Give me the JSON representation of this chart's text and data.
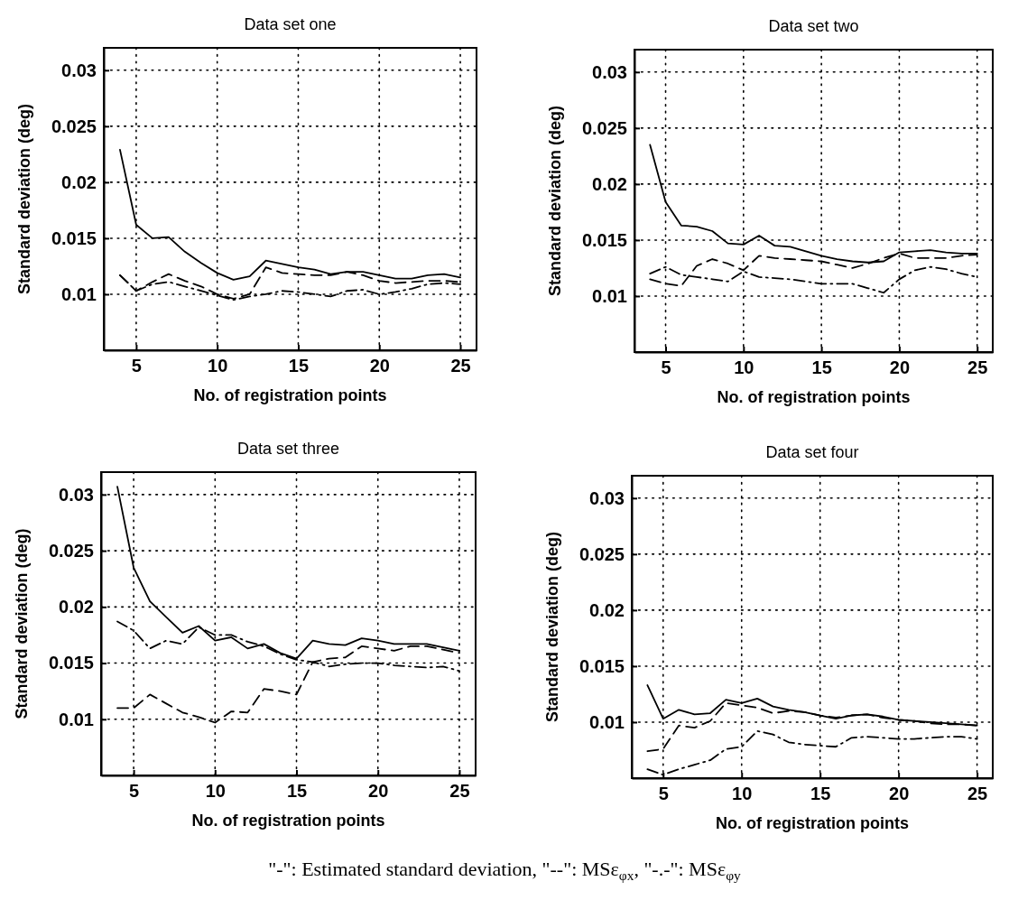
{
  "chart_data": [
    {
      "type": "line",
      "title": "Data set one",
      "xlabel": "No. of registration points",
      "ylabel": "Standard deviation (deg)",
      "x": [
        4,
        5,
        6,
        7,
        8,
        9,
        10,
        11,
        12,
        13,
        14,
        15,
        16,
        17,
        18,
        19,
        20,
        21,
        22,
        23,
        24,
        25
      ],
      "xlim": [
        3,
        26
      ],
      "xticks": [
        5,
        10,
        15,
        20,
        25
      ],
      "ylim": [
        0.005,
        0.032
      ],
      "yticks": [
        0.01,
        0.015,
        0.02,
        0.025,
        0.03
      ],
      "grid": true,
      "annotations": [
        "\"-\": Estimated standard deviation,  \"--\": MSε$_{φx}$,  \"-.-\": MSε$_{φy}$"
      ],
      "series": [
        {
          "color": "#000000",
          "line_style": "solid",
          "values": [
            0.0229,
            0.0162,
            0.015,
            0.0151,
            0.0138,
            0.0128,
            0.0119,
            0.0113,
            0.0116,
            0.013,
            0.0127,
            0.0124,
            0.0122,
            0.0118,
            0.012,
            0.012,
            0.0117,
            0.0114,
            0.0114,
            0.0117,
            0.0118,
            0.0115
          ]
        },
        {
          "color": "#000000",
          "line_style": "dashed",
          "values": [
            0.0117,
            0.0103,
            0.0111,
            0.0118,
            0.0112,
            0.0107,
            0.01,
            0.0096,
            0.01,
            0.0124,
            0.0119,
            0.0118,
            0.0117,
            0.0117,
            0.012,
            0.0117,
            0.0112,
            0.011,
            0.0111,
            0.0112,
            0.0112,
            0.0111
          ]
        },
        {
          "color": "#000000",
          "line_style": "dashdot",
          "values": [
            0.0117,
            0.0103,
            0.0109,
            0.0111,
            0.0107,
            0.0103,
            0.0099,
            0.0095,
            0.0098,
            0.01,
            0.0103,
            0.0102,
            0.01,
            0.0098,
            0.0103,
            0.0104,
            0.01,
            0.0102,
            0.0105,
            0.0109,
            0.011,
            0.0109
          ]
        }
      ]
    },
    {
      "type": "line",
      "title": "Data set two",
      "xlabel": "No. of registration points",
      "ylabel": "Standard deviation (deg)",
      "x": [
        4,
        5,
        6,
        7,
        8,
        9,
        10,
        11,
        12,
        13,
        14,
        15,
        16,
        17,
        18,
        19,
        20,
        21,
        22,
        23,
        24,
        25
      ],
      "xlim": [
        3,
        26
      ],
      "xticks": [
        5,
        10,
        15,
        20,
        25
      ],
      "ylim": [
        0.005,
        0.032
      ],
      "yticks": [
        0.01,
        0.015,
        0.02,
        0.025,
        0.03
      ],
      "grid": true,
      "series": [
        {
          "color": "#000000",
          "line_style": "solid",
          "values": [
            0.0235,
            0.0184,
            0.0163,
            0.0162,
            0.0158,
            0.0147,
            0.0146,
            0.0154,
            0.0145,
            0.0144,
            0.014,
            0.0136,
            0.0133,
            0.0131,
            0.013,
            0.0131,
            0.0139,
            0.014,
            0.0141,
            0.0139,
            0.0138,
            0.0138
          ]
        },
        {
          "color": "#000000",
          "line_style": "dashed",
          "values": [
            0.0115,
            0.0111,
            0.0109,
            0.0127,
            0.0133,
            0.0129,
            0.0123,
            0.0136,
            0.0134,
            0.0133,
            0.0132,
            0.0131,
            0.0128,
            0.0125,
            0.0129,
            0.0134,
            0.0138,
            0.0134,
            0.0134,
            0.0134,
            0.0136,
            0.0137
          ]
        },
        {
          "color": "#000000",
          "line_style": "dashdot",
          "values": [
            0.012,
            0.0126,
            0.0119,
            0.0117,
            0.0115,
            0.0113,
            0.0122,
            0.0117,
            0.0116,
            0.0115,
            0.0113,
            0.0111,
            0.0111,
            0.0111,
            0.0107,
            0.0103,
            0.0115,
            0.0123,
            0.0126,
            0.0124,
            0.012,
            0.0117
          ]
        }
      ]
    },
    {
      "type": "line",
      "title": "Data set three",
      "xlabel": "No. of registration points",
      "ylabel": "Standard deviation (deg)",
      "x": [
        4,
        5,
        6,
        7,
        8,
        9,
        10,
        11,
        12,
        13,
        14,
        15,
        16,
        17,
        18,
        19,
        20,
        21,
        22,
        23,
        24,
        25
      ],
      "xlim": [
        3,
        26
      ],
      "xticks": [
        5,
        10,
        15,
        20,
        25
      ],
      "ylim": [
        0.005,
        0.032
      ],
      "yticks": [
        0.01,
        0.015,
        0.02,
        0.025,
        0.03
      ],
      "grid": true,
      "series": [
        {
          "color": "#000000",
          "line_style": "solid",
          "values": [
            0.0307,
            0.0235,
            0.0205,
            0.0191,
            0.0177,
            0.0183,
            0.017,
            0.0173,
            0.0163,
            0.0167,
            0.0159,
            0.0154,
            0.017,
            0.0167,
            0.0166,
            0.0172,
            0.017,
            0.0167,
            0.0167,
            0.0167,
            0.0164,
            0.0161
          ]
        },
        {
          "color": "#000000",
          "line_style": "dashed",
          "values": [
            0.011,
            0.011,
            0.0122,
            0.0114,
            0.0106,
            0.0102,
            0.0097,
            0.0107,
            0.0106,
            0.0127,
            0.0125,
            0.0122,
            0.0151,
            0.0154,
            0.0155,
            0.0165,
            0.0163,
            0.0161,
            0.0165,
            0.0165,
            0.0162,
            0.0159
          ]
        },
        {
          "color": "#000000",
          "line_style": "dashdot",
          "values": [
            0.0187,
            0.0179,
            0.0163,
            0.017,
            0.0167,
            0.0182,
            0.0175,
            0.0175,
            0.0169,
            0.0165,
            0.0158,
            0.0153,
            0.0151,
            0.0147,
            0.0149,
            0.015,
            0.015,
            0.0148,
            0.0147,
            0.0146,
            0.0147,
            0.0143
          ]
        }
      ]
    },
    {
      "type": "line",
      "title": "Data set four",
      "xlabel": "No. of registration points",
      "ylabel": "Standard deviation (deg)",
      "x": [
        4,
        5,
        6,
        7,
        8,
        9,
        10,
        11,
        12,
        13,
        14,
        15,
        16,
        17,
        18,
        19,
        20,
        21,
        22,
        23,
        24,
        25
      ],
      "xlim": [
        3,
        26
      ],
      "xticks": [
        5,
        10,
        15,
        20,
        25
      ],
      "ylim": [
        0.005,
        0.032
      ],
      "yticks": [
        0.01,
        0.015,
        0.02,
        0.025,
        0.03
      ],
      "grid": true,
      "series": [
        {
          "color": "#000000",
          "line_style": "solid",
          "values": [
            0.0133,
            0.0103,
            0.0111,
            0.0107,
            0.0108,
            0.012,
            0.0117,
            0.0121,
            0.0114,
            0.0111,
            0.0109,
            0.0106,
            0.0103,
            0.0106,
            0.0107,
            0.0105,
            0.0102,
            0.0101,
            0.01,
            0.0099,
            0.0098,
            0.0097
          ]
        },
        {
          "color": "#000000",
          "line_style": "dashed",
          "values": [
            0.0074,
            0.0076,
            0.0097,
            0.0095,
            0.0101,
            0.0117,
            0.0115,
            0.0113,
            0.0108,
            0.011,
            0.0109,
            0.0106,
            0.0104,
            0.0106,
            0.0107,
            0.0104,
            0.0102,
            0.0101,
            0.0099,
            0.0098,
            0.0098,
            0.0097
          ]
        },
        {
          "color": "#000000",
          "line_style": "dashdot",
          "values": [
            0.0058,
            0.0053,
            0.0058,
            0.0062,
            0.0066,
            0.0076,
            0.0078,
            0.0092,
            0.0089,
            0.0082,
            0.008,
            0.0079,
            0.0078,
            0.0086,
            0.0087,
            0.0086,
            0.0085,
            0.0085,
            0.0086,
            0.0087,
            0.0087,
            0.0085
          ]
        }
      ]
    }
  ]
}
